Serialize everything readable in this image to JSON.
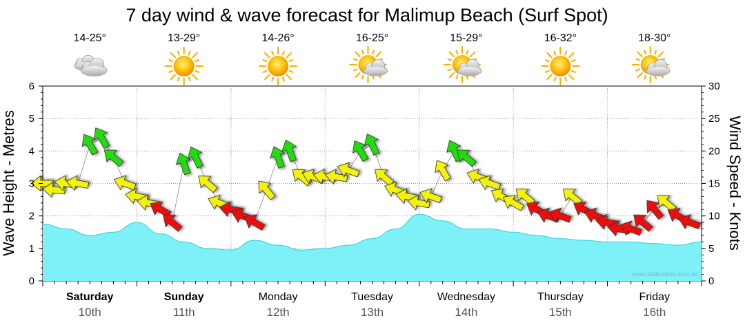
{
  "title": "7 day wind & wave forecast for Malimup Beach (Surf Spot)",
  "watermark": "www.seabreeze.com.au",
  "colors": {
    "wave_fill": "#7df0f8",
    "wave_line": "#2fd0e0",
    "arrow_green": "#22dd11",
    "arrow_yellow": "#f2f20a",
    "arrow_red": "#ee1111",
    "grid": "#999999"
  },
  "days": [
    {
      "name": "Saturday",
      "date": "10th",
      "temp": "14-25°",
      "icon": "cloudy-icon",
      "bold": true
    },
    {
      "name": "Sunday",
      "date": "11th",
      "temp": "13-29°",
      "icon": "sunny-icon",
      "bold": true
    },
    {
      "name": "Monday",
      "date": "12th",
      "temp": "14-26°",
      "icon": "sunny-icon",
      "bold": false
    },
    {
      "name": "Tuesday",
      "date": "13th",
      "temp": "16-25°",
      "icon": "partly-cloudy-icon",
      "bold": false
    },
    {
      "name": "Wednesday",
      "date": "14th",
      "temp": "15-29°",
      "icon": "partly-cloudy-icon",
      "bold": false
    },
    {
      "name": "Thursday",
      "date": "15th",
      "temp": "16-32°",
      "icon": "sunny-icon",
      "bold": false
    },
    {
      "name": "Friday",
      "date": "16th",
      "temp": "18-30°",
      "icon": "partly-cloudy-icon",
      "bold": false
    }
  ],
  "chart_data": {
    "type": "area",
    "title": "7 day wind & wave forecast for Malimup Beach (Surf Spot)",
    "x_unit": "hours from start of Saturday 10th",
    "x_range": [
      0,
      168
    ],
    "y_left": {
      "label": "Wave Height - Metres",
      "ticks": [
        "0",
        "1",
        "2",
        "3",
        "4",
        "5",
        "6"
      ],
      "range": [
        0,
        6
      ]
    },
    "y_right": {
      "label": "Wind Speed - Knots",
      "ticks": [
        "0",
        "5",
        "10",
        "15",
        "20",
        "25",
        "30"
      ],
      "range": [
        0,
        30
      ]
    },
    "wave_series": {
      "name": "Wave Height",
      "x": [
        0,
        6,
        12,
        18,
        24,
        30,
        36,
        42,
        48,
        54,
        60,
        66,
        72,
        78,
        84,
        90,
        96,
        102,
        108,
        114,
        120,
        126,
        132,
        138,
        144,
        150,
        156,
        162,
        168
      ],
      "y": [
        1.75,
        1.6,
        1.4,
        1.5,
        1.8,
        1.45,
        1.2,
        1.0,
        0.95,
        1.25,
        1.1,
        0.95,
        1.0,
        1.1,
        1.3,
        1.6,
        2.05,
        1.85,
        1.6,
        1.6,
        1.5,
        1.4,
        1.3,
        1.25,
        1.2,
        1.2,
        1.15,
        1.1,
        1.2
      ]
    },
    "wind_series": {
      "name": "Wind",
      "x": [
        0,
        3,
        6,
        9,
        12,
        15,
        18,
        21,
        24,
        27,
        30,
        33,
        36,
        39,
        42,
        45,
        48,
        51,
        54,
        57,
        60,
        63,
        66,
        69,
        72,
        75,
        78,
        81,
        84,
        87,
        90,
        93,
        96,
        99,
        102,
        105,
        108,
        111,
        114,
        117,
        120,
        123,
        126,
        129,
        132,
        135,
        138,
        141,
        144,
        147,
        150,
        153,
        156,
        159,
        162,
        165
      ],
      "knots": [
        15,
        14,
        15,
        15,
        21,
        22,
        19,
        15,
        13,
        12,
        11,
        9,
        18,
        19,
        15,
        12,
        11,
        10,
        9,
        14,
        19,
        20,
        16,
        16,
        16,
        16,
        17,
        20,
        21,
        16,
        14,
        13,
        12,
        13,
        17,
        20,
        19,
        16,
        15,
        13,
        12,
        13,
        11,
        10,
        10,
        13,
        11,
        10,
        9,
        8,
        8,
        9,
        11,
        12,
        10,
        9
      ],
      "direction_deg": [
        90,
        95,
        100,
        100,
        150,
        150,
        130,
        110,
        100,
        100,
        120,
        130,
        160,
        155,
        130,
        110,
        100,
        110,
        120,
        140,
        160,
        160,
        130,
        110,
        100,
        100,
        110,
        150,
        155,
        130,
        110,
        100,
        100,
        110,
        150,
        155,
        130,
        110,
        110,
        120,
        120,
        130,
        120,
        110,
        110,
        130,
        120,
        110,
        100,
        100,
        110,
        130,
        140,
        130,
        120,
        110
      ],
      "color_bands": "green >= 18 kn, yellow 12-17 kn, red < 12 kn"
    }
  }
}
